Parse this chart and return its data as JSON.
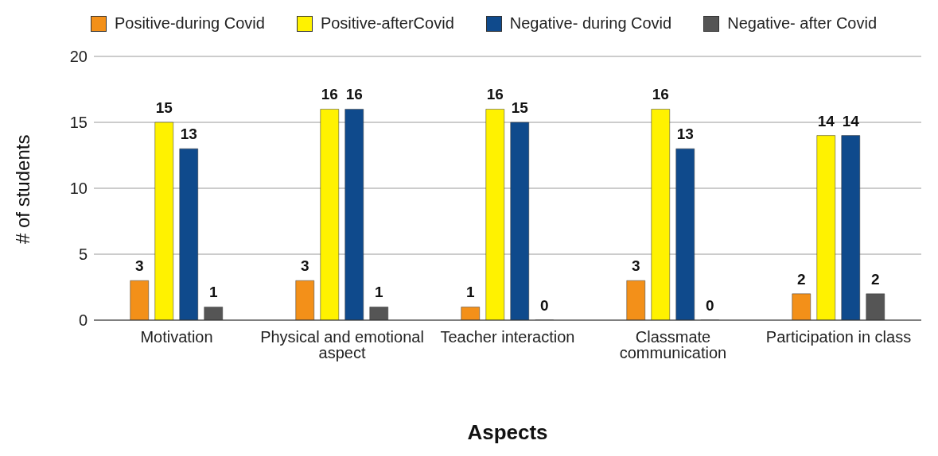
{
  "chart_data": {
    "type": "bar",
    "xlabel": "Aspects",
    "ylabel": "# of students",
    "categories": [
      "Motivation",
      "Physical and emotional aspect",
      "Teacher interaction",
      "Classmate communication",
      "Participation in class"
    ],
    "series": [
      {
        "name": "Positive-during Covid",
        "color": "#f39019",
        "values": [
          3,
          3,
          1,
          3,
          2
        ]
      },
      {
        "name": "Positive-afterCovid",
        "color": "#fff200",
        "values": [
          15,
          16,
          16,
          16,
          14
        ]
      },
      {
        "name": "Negative- during Covid",
        "color": "#0f4a8c",
        "values": [
          13,
          16,
          15,
          13,
          14
        ]
      },
      {
        "name": "Negative- after Covid",
        "color": "#555555",
        "values": [
          1,
          1,
          0,
          0,
          2
        ]
      }
    ],
    "ylim": [
      0,
      20
    ],
    "yticks": [
      0,
      5,
      10,
      15,
      20
    ],
    "grid": "y",
    "legend": "top",
    "data_labels": true
  }
}
